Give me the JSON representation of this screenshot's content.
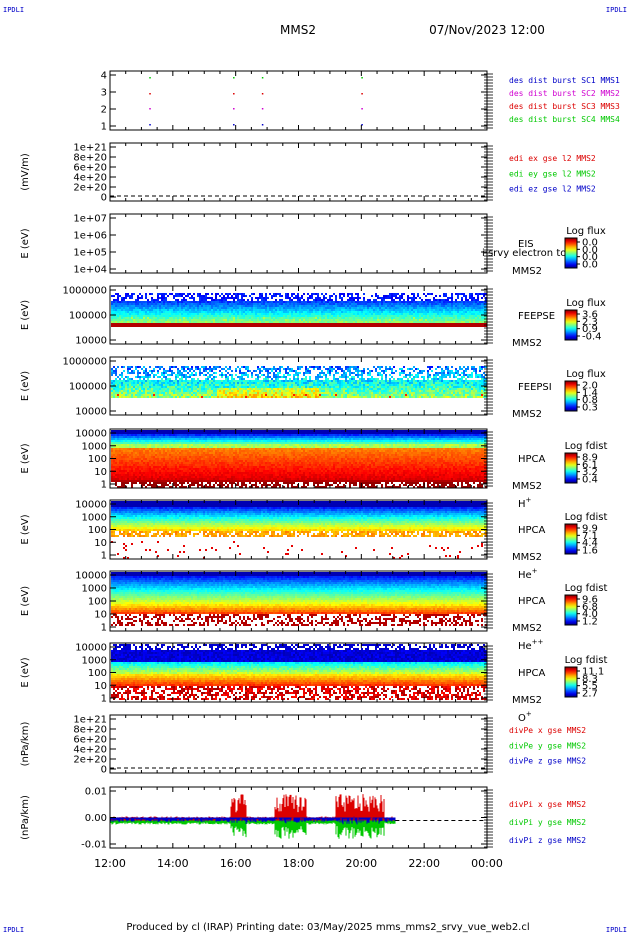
{
  "header": {
    "corner_left": "IPDLI",
    "corner_right": "IPDLI",
    "mission": "MMS2",
    "datetime": "07/Nov/2023 12:00"
  },
  "footer": {
    "corner_left": "IPDLI",
    "corner_right": "IPDLI",
    "credit": "Produced by cl (IRAP)   Printing date: 03/May/2025   mms_mms2_srvy_vue_web2.cl"
  },
  "colors": {
    "blue": "#0000c8",
    "red": "#dc0000",
    "green": "#00c800",
    "magenta": "#d000d0"
  },
  "chart_data": {
    "type": "stacked-panels",
    "x_axis": {
      "range": [
        "12:00",
        "00:00"
      ],
      "tick_labels": [
        "12:00",
        "14:00",
        "16:00",
        "18:00",
        "20:00",
        "22:00",
        "00:00"
      ],
      "data_end": "21:05"
    },
    "panels": [
      {
        "id": "burst",
        "type": "scatter",
        "yticks": [
          "4",
          "3",
          "2",
          "1"
        ],
        "legend": [
          {
            "label": "des dist burst SC1 MMS1",
            "color": "#0000c8"
          },
          {
            "label": "des dist burst SC2 MMS2",
            "color": "#d000d0"
          },
          {
            "label": "des dist burst SC3 MMS3",
            "color": "#dc0000"
          },
          {
            "label": "des dist burst SC4 MMS4",
            "color": "#00c800"
          }
        ],
        "burst_times": [
          "13:15",
          "15:55",
          "16:50",
          "20:00"
        ]
      },
      {
        "id": "edi",
        "type": "line",
        "ylabel": "(mV/m)",
        "yticks": [
          "1e+21",
          "8e+20",
          "6e+20",
          "4e+20",
          "2e+20",
          "0"
        ],
        "legend": [
          {
            "label": "edi ex gse l2 MMS2",
            "color": "#dc0000"
          },
          {
            "label": "edi ey gse l2 MMS2",
            "color": "#00c800"
          },
          {
            "label": "edi ez gse l2 MMS2",
            "color": "#0000c8"
          }
        ]
      },
      {
        "id": "eis",
        "type": "heatmap",
        "ylabel": "E (eV)",
        "yticks": [
          "1e+07",
          "1e+06",
          "1e+05",
          "1e+04"
        ],
        "labels": [
          "EIS",
          "MMS2"
        ],
        "overlay_text": "i srvy electron to",
        "colorbar": {
          "title": "Log flux",
          "ticks": [
            "0.0",
            "0.0",
            "0.0",
            "0.0"
          ]
        }
      },
      {
        "id": "feepse",
        "type": "heatmap",
        "ylabel": "E (eV)",
        "yticks": [
          "1000000",
          "100000",
          "10000"
        ],
        "labels": [
          "FEEPSE",
          "MMS2"
        ],
        "colorbar": {
          "title": "Log flux",
          "ticks": [
            "3.6",
            "2.3",
            "0.9",
            "-0.4"
          ]
        }
      },
      {
        "id": "feepsi",
        "type": "heatmap",
        "ylabel": "E (eV)",
        "yticks": [
          "1000000",
          "100000",
          "10000"
        ],
        "labels": [
          "FEEPSI",
          "MMS2"
        ],
        "colorbar": {
          "title": "Log flux",
          "ticks": [
            "2.0",
            "1.4",
            "0.8",
            "0.3"
          ]
        }
      },
      {
        "id": "hpca_h",
        "type": "heatmap",
        "ylabel": "E (eV)",
        "yticks": [
          "10000",
          "1000",
          "100",
          "10",
          "1"
        ],
        "labels": [
          "HPCA",
          "MMS2"
        ],
        "species": "H",
        "species_sup": "+",
        "colorbar": {
          "title": "Log fdist",
          "ticks": [
            "8.9",
            "6.1",
            "3.2",
            "0.4"
          ]
        }
      },
      {
        "id": "hpca_he",
        "type": "heatmap",
        "ylabel": "E (eV)",
        "yticks": [
          "10000",
          "1000",
          "100",
          "10",
          "1"
        ],
        "labels": [
          "HPCA",
          "MMS2"
        ],
        "species": "He",
        "species_sup": "+",
        "colorbar": {
          "title": "Log fdist",
          "ticks": [
            "9.9",
            "7.1",
            "4.4",
            "1.6"
          ]
        }
      },
      {
        "id": "hpca_hepp",
        "type": "heatmap",
        "ylabel": "E (eV)",
        "yticks": [
          "10000",
          "1000",
          "100",
          "10",
          "1"
        ],
        "labels": [
          "HPCA",
          "MMS2"
        ],
        "species": "He",
        "species_sup": "++",
        "colorbar": {
          "title": "Log fdist",
          "ticks": [
            "9.6",
            "6.8",
            "4.0",
            "1.2"
          ]
        }
      },
      {
        "id": "hpca_o",
        "type": "heatmap",
        "ylabel": "E (eV)",
        "yticks": [
          "10000",
          "1000",
          "100",
          "10",
          "1"
        ],
        "labels": [
          "HPCA",
          "MMS2"
        ],
        "species": "O",
        "species_sup": "+",
        "colorbar": {
          "title": "Log fdist",
          "ticks": [
            "11.1",
            "8.3",
            "5.5",
            "2.7"
          ]
        }
      },
      {
        "id": "divpe",
        "type": "line",
        "ylabel": "(nPa/km)",
        "yticks": [
          "1e+21",
          "8e+20",
          "6e+20",
          "4e+20",
          "2e+20",
          "0"
        ],
        "legend": [
          {
            "label": "divPe x gse MMS2",
            "color": "#dc0000"
          },
          {
            "label": "divPe y gse MMS2",
            "color": "#00c800"
          },
          {
            "label": "divPe z gse MMS2",
            "color": "#0000c8"
          }
        ]
      },
      {
        "id": "divpi",
        "type": "line",
        "ylabel": "(nPa/km)",
        "yticks": [
          "0.01",
          "0.00",
          "-0.01"
        ],
        "ylim": [
          -0.015,
          0.015
        ],
        "legend": [
          {
            "label": "divPi x gse MMS2",
            "color": "#dc0000"
          },
          {
            "label": "divPi y gse MMS2",
            "color": "#00c800"
          },
          {
            "label": "divPi z gse MMS2",
            "color": "#0000c8"
          }
        ],
        "peak_abs": {
          "x": 0.013,
          "y": 0.009,
          "z": 0.004
        },
        "peak_windows": [
          "15:50-16:20",
          "17:15-18:15",
          "19:10-20:45"
        ]
      }
    ]
  }
}
